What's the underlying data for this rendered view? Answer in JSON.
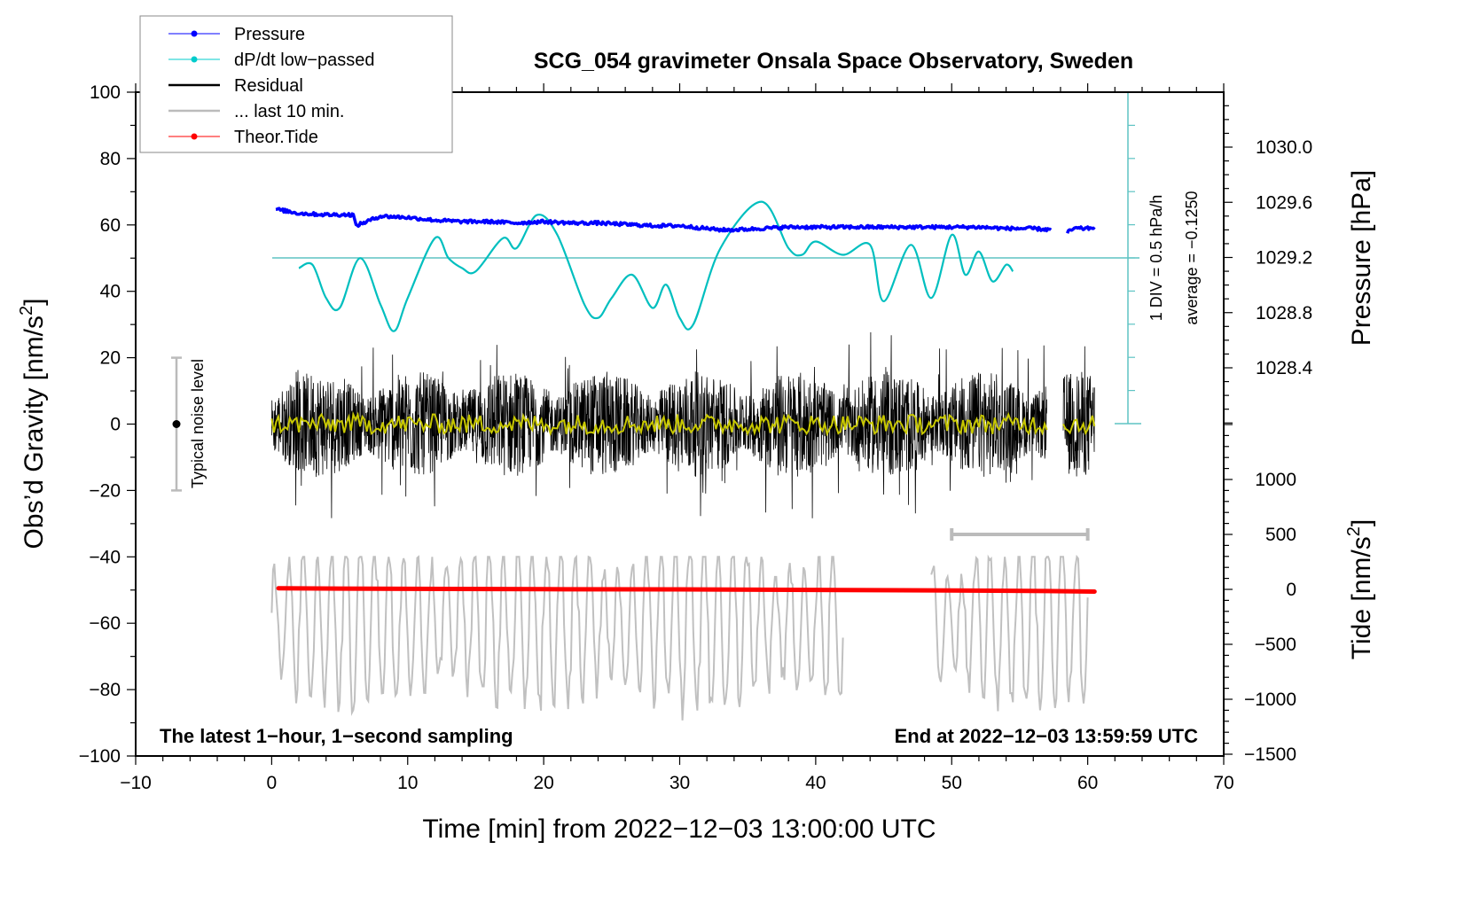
{
  "chart_data": {
    "type": "line",
    "title": "SCG_054 gravimeter Onsala Space Observatory, Sweden",
    "xlabel": "Time [min] from 2022−12−03 13:00:00 UTC",
    "ylabel": "Obs’d Gravity [nm/s²]",
    "ylabel_main": "Obs’d Gravity [nm/s",
    "ylabel_sup": "2",
    "ylabel_end": "]",
    "xlim": [
      -10,
      70
    ],
    "ylim": [
      -100,
      100
    ],
    "x_ticks": [
      -10,
      0,
      10,
      20,
      30,
      40,
      50,
      60,
      70
    ],
    "x_tick_labels": [
      "−10",
      "0",
      "10",
      "20",
      "30",
      "40",
      "50",
      "60",
      "70"
    ],
    "y_ticks": [
      100,
      80,
      60,
      40,
      20,
      0,
      -20,
      -40,
      -60,
      -80,
      -100
    ],
    "y_tick_labels": [
      "100",
      "80",
      "60",
      "40",
      "20",
      "0",
      "−20",
      "−40",
      "−60",
      "−80",
      "−100"
    ],
    "pressure_axis": {
      "label": "Pressure [hPa]",
      "ticks": [
        1030.0,
        1029.6,
        1029.2,
        1028.8,
        1028.4
      ],
      "tick_labels": [
        "1030.0",
        "1029.6",
        "1029.2",
        "1028.8",
        "1028.4"
      ]
    },
    "tide_axis": {
      "label_main": "Tide [nm/s",
      "label_sup": "2",
      "label_end": "]",
      "ticks": [
        1000,
        500,
        0,
        -500,
        -1000,
        -1500
      ],
      "tick_labels": [
        "1000",
        "500",
        "0",
        "−500",
        "−1000",
        "−1500"
      ]
    },
    "dpdt_scale": {
      "label_div": "1 DIV = 0.5 hPa/h",
      "label_avg": "average = −0.1250"
    },
    "noise_bar": {
      "label": "Typical noise level",
      "center": 0,
      "range": [
        -20,
        20
      ]
    },
    "last10_bar": {
      "x_range": [
        50,
        60
      ]
    },
    "annotations": {
      "bottom_left": "The latest 1−hour, 1−second sampling",
      "bottom_right": "End at 2022−12−03 13:59:59 UTC"
    },
    "legend": {
      "position": "top-left",
      "entries": [
        {
          "label": "Pressure",
          "color": "#0000ff",
          "marker": true
        },
        {
          "label": "dP/dt low−passed",
          "color": "#00cccc",
          "marker": true
        },
        {
          "label": "Residual",
          "color": "#000000",
          "marker": false
        },
        {
          "label": "... last 10 min.",
          "color": "#bbbbbb",
          "marker": false
        },
        {
          "label": "Theor.Tide",
          "color": "#ff0000",
          "marker": true
        }
      ]
    },
    "series": [
      {
        "name": "Pressure",
        "axis": "pressure_hPa",
        "color": "#0000ff",
        "x": [
          0.3,
          2,
          4,
          6,
          6.2,
          8,
          10,
          12,
          14,
          16,
          18,
          20,
          22,
          24,
          26,
          28,
          30,
          32,
          33,
          34,
          36,
          38,
          40,
          42,
          44,
          46,
          48,
          50,
          52,
          54,
          56,
          57.3
        ],
        "values": [
          1029.55,
          1029.52,
          1029.51,
          1029.51,
          1029.43,
          1029.5,
          1029.49,
          1029.47,
          1029.46,
          1029.46,
          1029.45,
          1029.46,
          1029.45,
          1029.45,
          1029.44,
          1029.43,
          1029.43,
          1029.41,
          1029.4,
          1029.4,
          1029.41,
          1029.42,
          1029.42,
          1029.42,
          1029.42,
          1029.42,
          1029.42,
          1029.42,
          1029.42,
          1029.41,
          1029.41,
          1029.4
        ],
        "x2": [
          58.5,
          59,
          60,
          60.5
        ],
        "values2": [
          1029.38,
          1029.41,
          1029.41,
          1029.42
        ]
      },
      {
        "name": "dP/dt low-passed",
        "axis": "gravity_display",
        "color": "#00bfbf",
        "x": [
          2,
          3,
          4,
          5,
          6.5,
          8,
          9,
          10,
          12,
          13,
          14,
          15,
          17,
          18,
          19.5,
          21,
          23,
          24,
          25,
          26.5,
          28,
          29,
          30,
          31,
          33,
          36,
          38,
          39,
          40,
          42,
          44,
          45,
          47,
          48.5,
          50,
          51,
          52,
          53,
          54,
          54.5
        ],
        "values": [
          47,
          48,
          38,
          35,
          50,
          36,
          28,
          38,
          56,
          50,
          47,
          46,
          56,
          53,
          63,
          57,
          36,
          32,
          38,
          45,
          35,
          42,
          32,
          30,
          53,
          67,
          53,
          51,
          55,
          51,
          54,
          37,
          54,
          38,
          57,
          45,
          52,
          43,
          48,
          46
        ]
      },
      {
        "name": "Residual",
        "axis": "gravity",
        "color": "#000000",
        "amplitude_range": [
          -35,
          35
        ],
        "x_range": [
          0,
          60.5
        ],
        "gap": [
          57,
          58.2
        ]
      },
      {
        "name": "Residual low-passed",
        "axis": "gravity",
        "color": "#c8c800",
        "level": 0,
        "amplitude": 5
      },
      {
        "name": "... last 10 min.",
        "axis": "gravity_display",
        "color": "#c0c0c0",
        "x_range": [
          0,
          60
        ],
        "gap": [
          42,
          48.5
        ],
        "center": -60,
        "amplitude_range": [
          -100,
          -40
        ]
      },
      {
        "name": "Theor.Tide",
        "axis": "tide",
        "color": "#ff0000",
        "x": [
          0.5,
          10,
          20,
          30,
          40,
          50,
          57,
          60.5
        ],
        "values": [
          10,
          5,
          2,
          0,
          -5,
          -10,
          -15,
          -20
        ]
      }
    ]
  }
}
